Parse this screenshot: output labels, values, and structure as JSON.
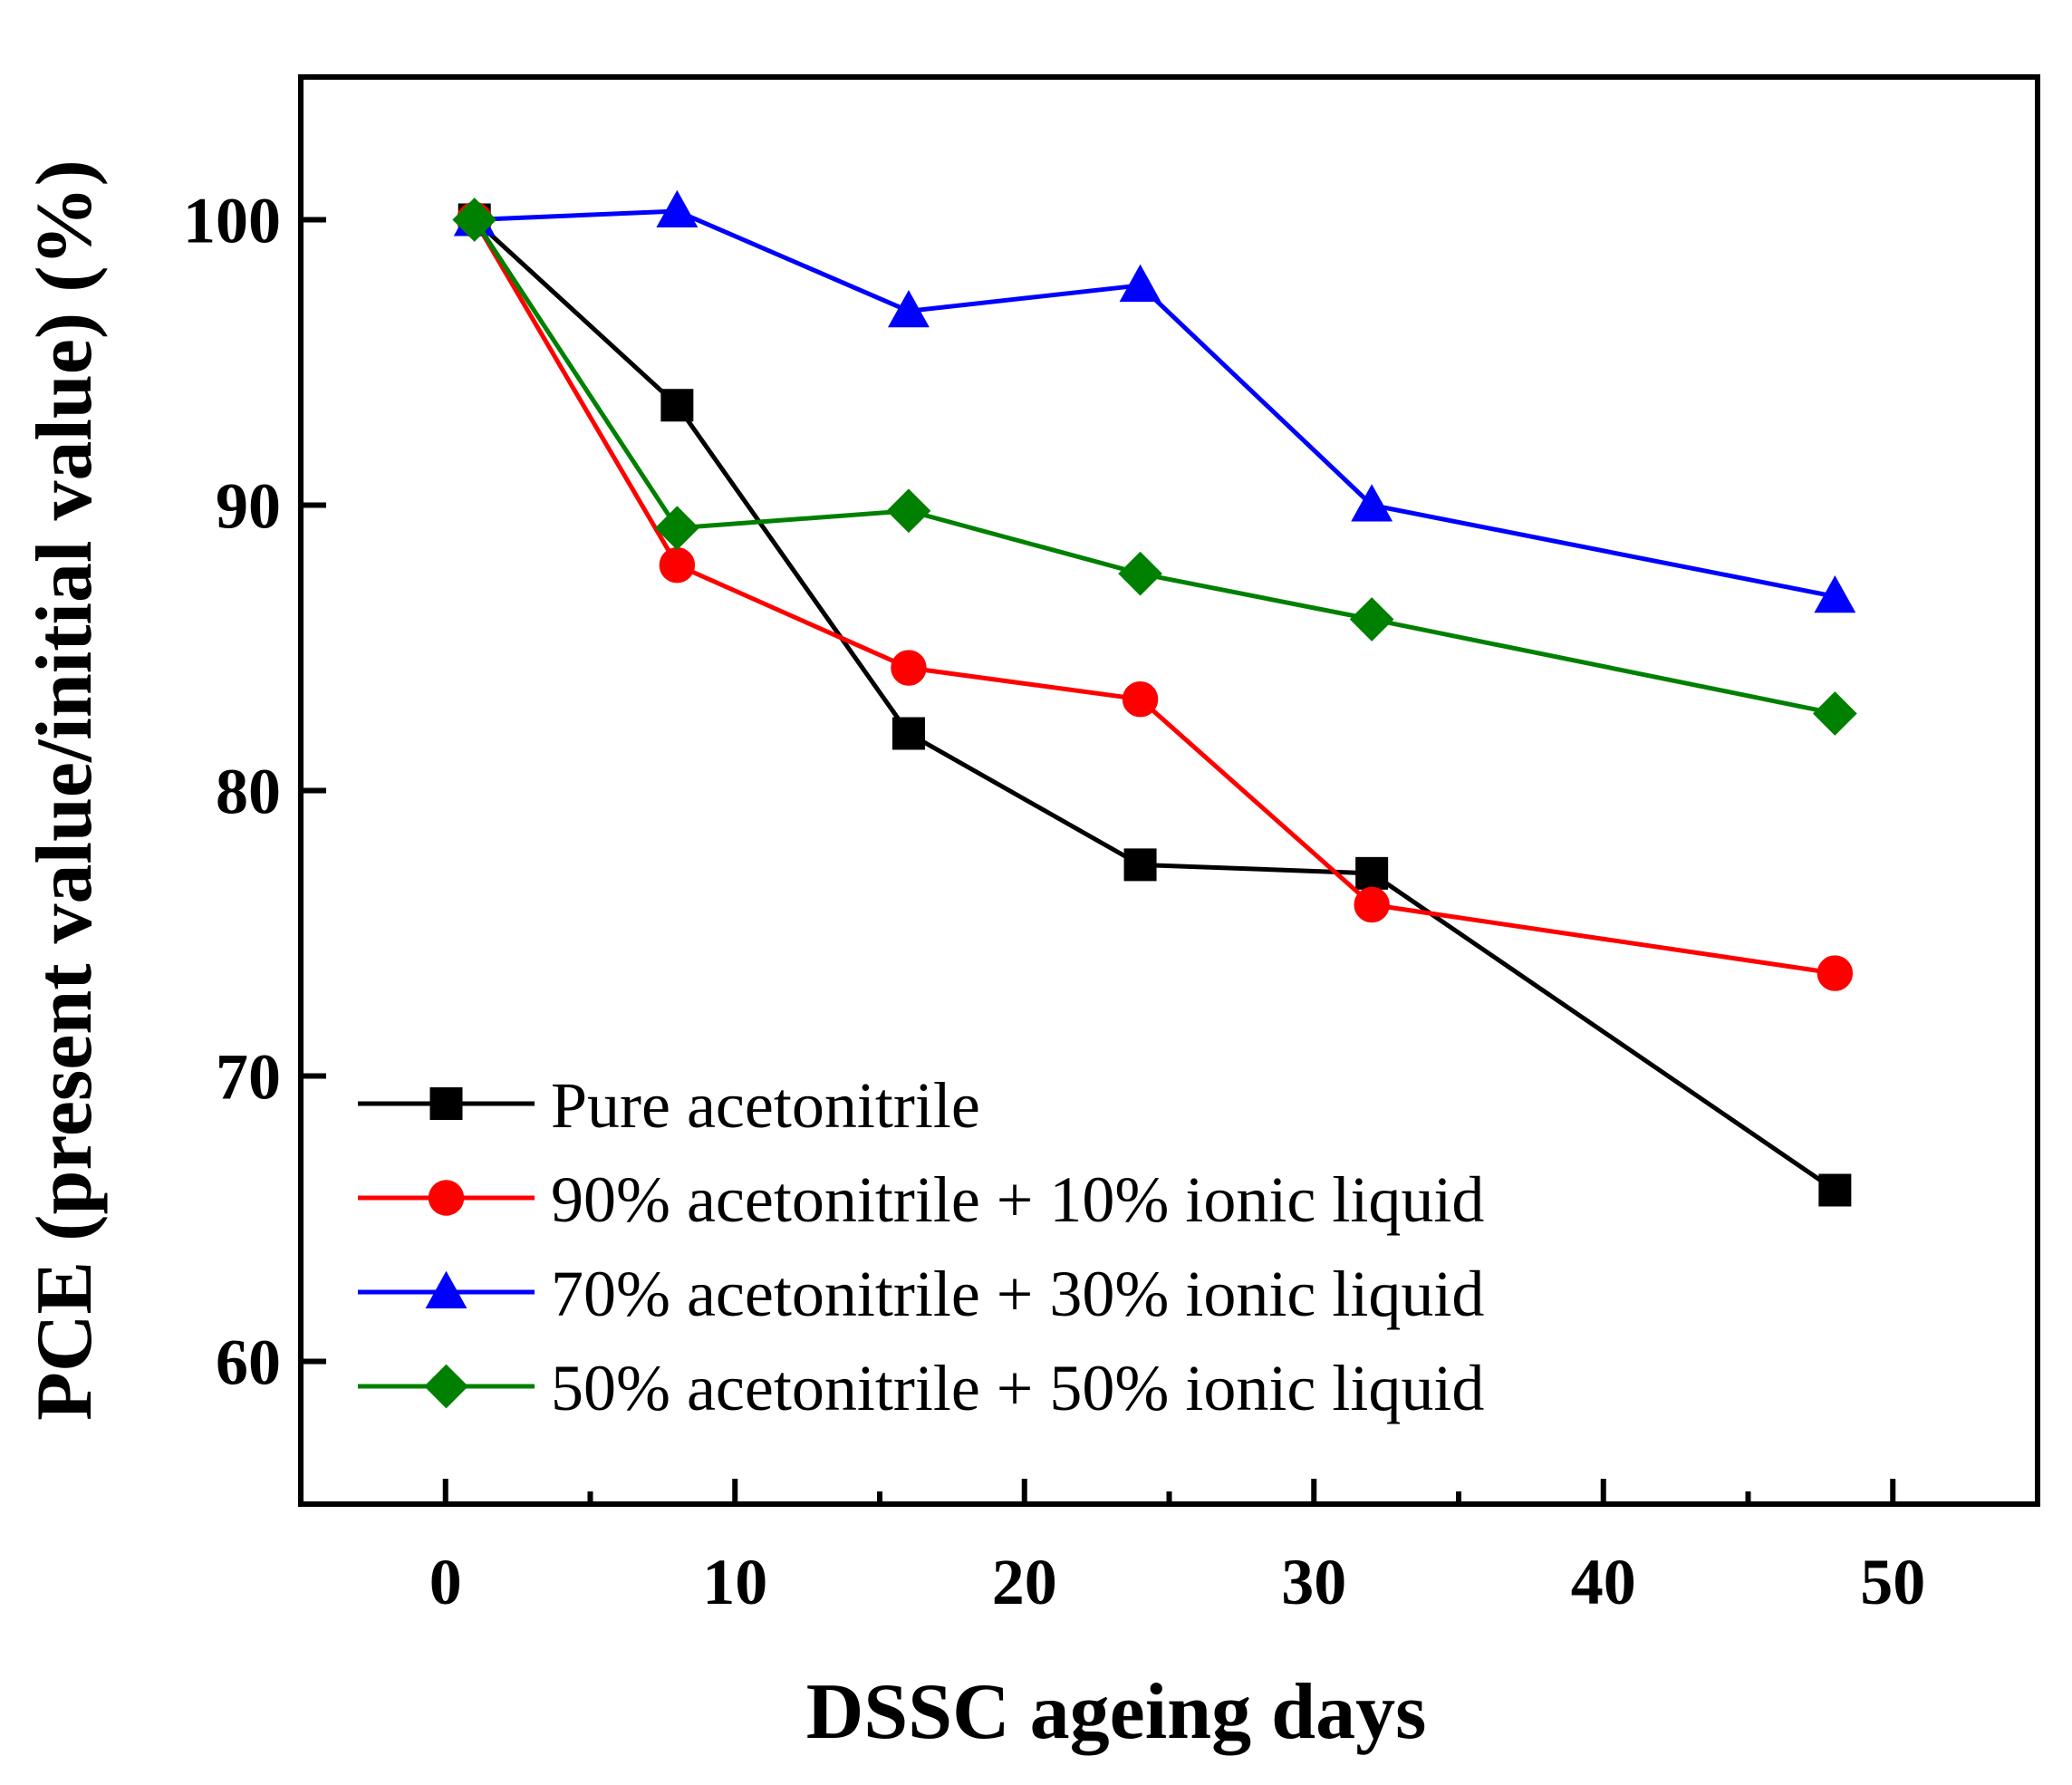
{
  "chart_data": {
    "type": "line",
    "title": "",
    "xlabel": "DSSC ageing days",
    "ylabel": "PCE (present value/initial value) (%)",
    "xlim": [
      -5,
      55
    ],
    "ylim": [
      55,
      105
    ],
    "x_ticks": [
      0,
      10,
      20,
      30,
      40,
      50
    ],
    "y_ticks": [
      60,
      70,
      80,
      90,
      100
    ],
    "grid": false,
    "legend_position": "lower-left",
    "x": [
      1,
      8,
      16,
      24,
      32,
      48
    ],
    "series": [
      {
        "name": "Pure acetonitrile",
        "color": "#000000",
        "marker": "square",
        "values": [
          100,
          93.5,
          82,
          77.4,
          77.1,
          66
        ]
      },
      {
        "name": "90% acetonitrile + 10% ionic liquid",
        "color": "#ff0000",
        "marker": "circle",
        "values": [
          100,
          87.9,
          84.3,
          83.2,
          76,
          73.6
        ]
      },
      {
        "name": "70% acetonitrile + 30% ionic liquid",
        "color": "#0000ff",
        "marker": "triangle",
        "values": [
          100,
          100.3,
          96.8,
          97.7,
          90,
          86.8
        ]
      },
      {
        "name": "50% acetonitrile + 50% ionic liquid",
        "color": "#008000",
        "marker": "diamond",
        "values": [
          100,
          89.2,
          89.8,
          87.6,
          86,
          82.7
        ]
      }
    ]
  }
}
